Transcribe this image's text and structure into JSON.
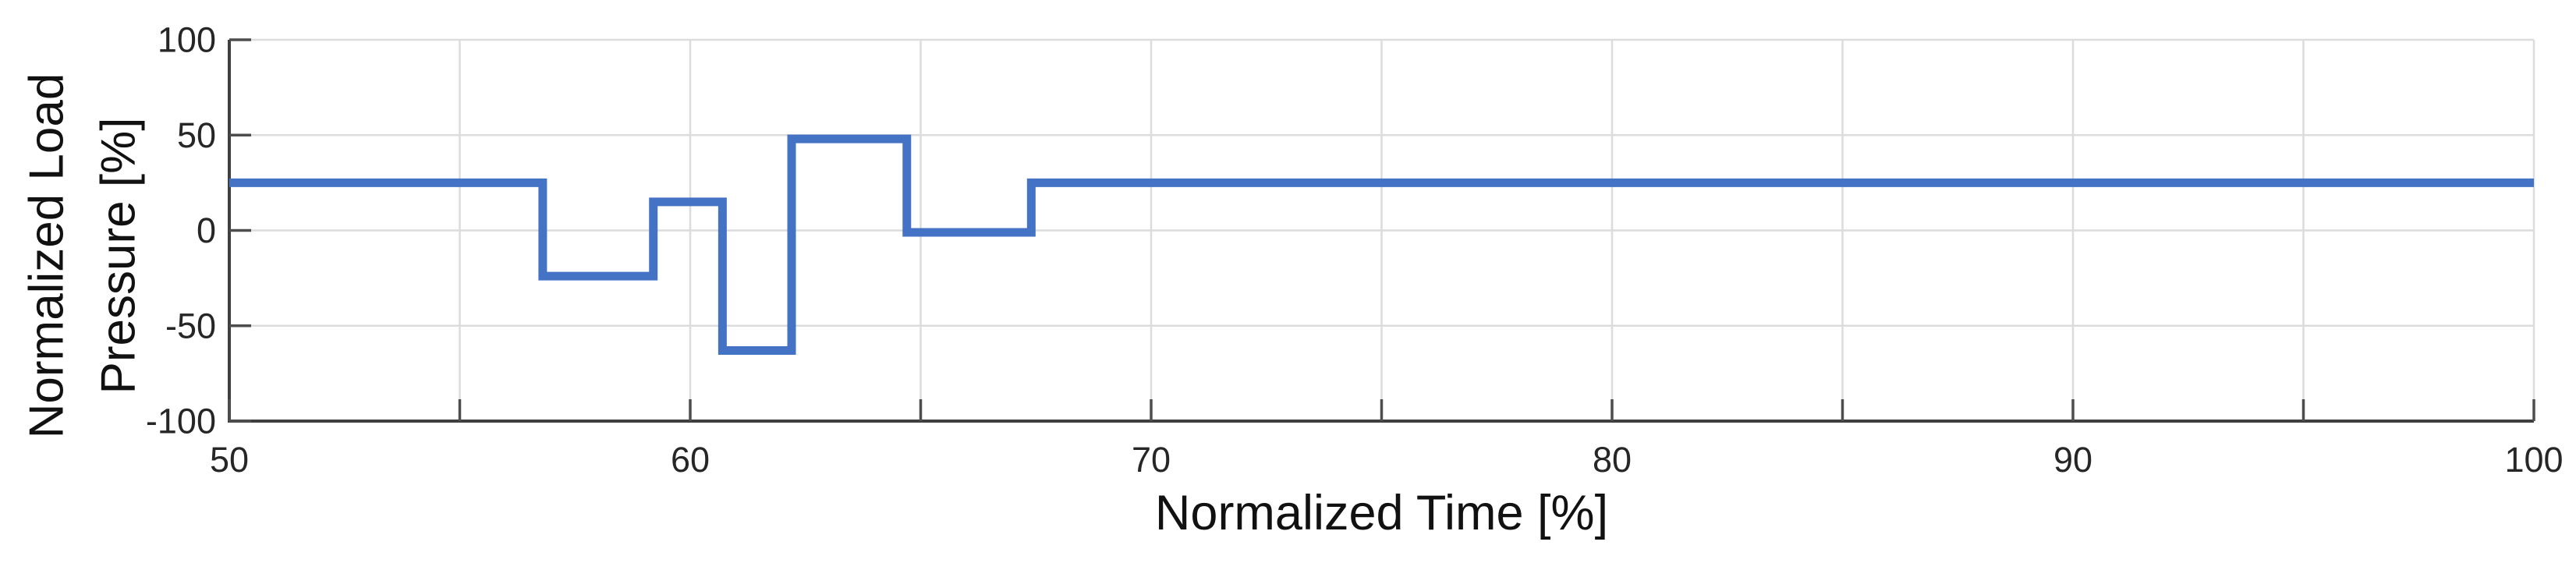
{
  "chart_data": {
    "type": "step-line",
    "title": "",
    "xlabel": "Normalized Time [%]",
    "ylabel": "Normalized Load Pressure [%]",
    "ylabel_lines": [
      "Normalized Load",
      "Pressure [%]"
    ],
    "xlim": [
      50,
      100
    ],
    "ylim": [
      -100,
      100
    ],
    "xtick_labels": [
      50,
      60,
      70,
      80,
      90,
      100
    ],
    "xtick_minor_step": 5,
    "yticks": [
      100,
      50,
      0,
      -50,
      -100
    ],
    "grid": true,
    "legend": null,
    "colors": {
      "line": "#4472c4",
      "axis": "#3f3f3f",
      "tick": "#4d4d4d",
      "grid": "#dcdcdc",
      "tick_label": "#262626",
      "background": "#ffffff"
    },
    "series": [
      {
        "name": "Normalized Load Pressure",
        "steps": [
          {
            "x_start": 50.0,
            "x_end": 56.8,
            "y": 25
          },
          {
            "x_start": 56.8,
            "x_end": 59.2,
            "y": -24
          },
          {
            "x_start": 59.2,
            "x_end": 60.7,
            "y": 15
          },
          {
            "x_start": 60.7,
            "x_end": 62.2,
            "y": -63
          },
          {
            "x_start": 62.2,
            "x_end": 64.7,
            "y": 48
          },
          {
            "x_start": 64.7,
            "x_end": 67.4,
            "y": -1
          },
          {
            "x_start": 67.4,
            "x_end": 100.0,
            "y": 25
          }
        ]
      }
    ]
  }
}
